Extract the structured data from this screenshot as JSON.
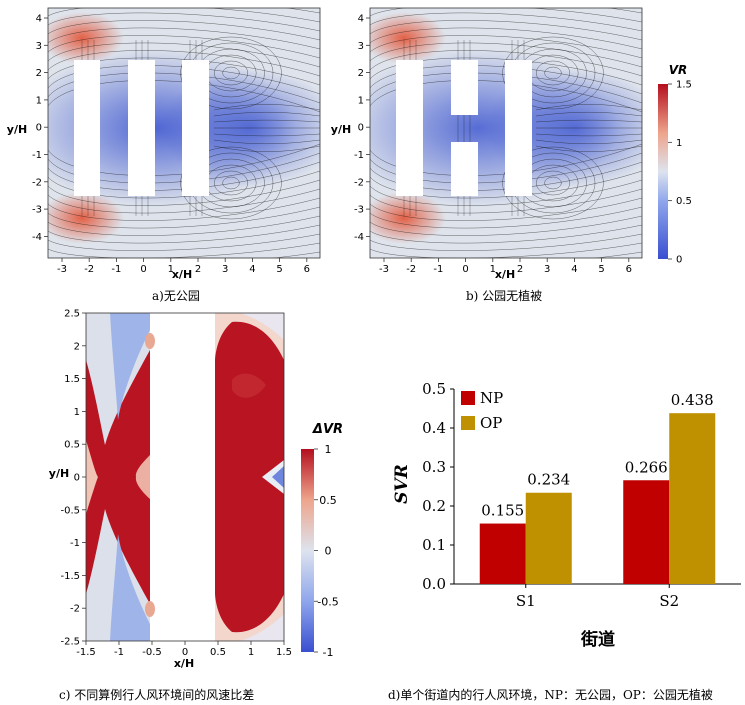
{
  "colors": {
    "low": "#3a4fd0",
    "mid": "#dde3ee",
    "high": "#b40f1e",
    "np_bar": "#c00000",
    "op_bar": "#bf9000",
    "streamline": "#111111"
  },
  "captions": {
    "a": "a)无公园",
    "b": "b) 公园无植被",
    "c": "c) 不同算例行人风环境间的风速比差",
    "d": "d)单个街道内的行人风环境，NP：无公园，OP：公园无植被"
  },
  "flow_panels": {
    "xlabel": "x/H",
    "ylabel": "y/H",
    "xticks": [
      "-3",
      "-2",
      "-1",
      "0",
      "1",
      "2",
      "3",
      "4",
      "5",
      "6"
    ],
    "yticks": [
      "4",
      "3",
      "2",
      "1",
      "0",
      "-1",
      "-2",
      "-3",
      "-4"
    ],
    "colorbar": {
      "title": "VR",
      "ticks": [
        "1.5",
        "1",
        "0.5",
        "0"
      ],
      "range": [
        0,
        1.5
      ]
    }
  },
  "diff_panel": {
    "xlabel": "x/H",
    "ylabel": "y/H",
    "xticks": [
      "-1.5",
      "-1",
      "-0.5",
      "0",
      "0.5",
      "1",
      "1.5"
    ],
    "yticks": [
      "2.5",
      "2",
      "1.5",
      "1",
      "0.5",
      "0",
      "-0.5",
      "-1",
      "-1.5",
      "-2",
      "-2.5"
    ],
    "colorbar": {
      "title": "ΔVR",
      "ticks": [
        "1",
        "0.5",
        "0",
        "-0.5",
        "-1"
      ],
      "range": [
        -1,
        1
      ]
    }
  },
  "chart_data": {
    "type": "bar",
    "categories": [
      "S1",
      "S2"
    ],
    "series": [
      {
        "name": "NP",
        "values": [
          0.155,
          0.266
        ]
      },
      {
        "name": "OP",
        "values": [
          0.234,
          0.438
        ]
      }
    ],
    "value_labels": [
      [
        "0.155",
        "0.266"
      ],
      [
        "0.234",
        "0.438"
      ]
    ],
    "xlabel": "街道",
    "ylabel": "SVR",
    "ylim": [
      0,
      0.5
    ],
    "yticks": [
      "0.0",
      "0.1",
      "0.2",
      "0.3",
      "0.4",
      "0.5"
    ],
    "legend": "top-left"
  }
}
